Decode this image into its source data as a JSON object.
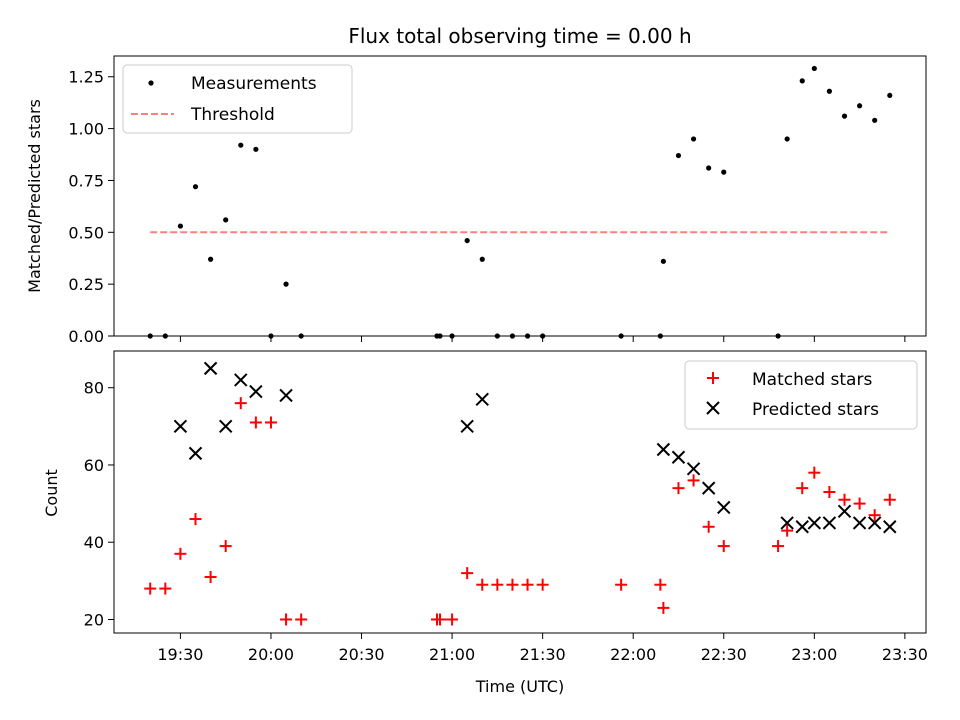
{
  "chart_data": [
    {
      "type": "scatter",
      "title": "Flux total observing time = 0.00 h",
      "xlabel": "",
      "ylabel": "Matched/Predicted stars",
      "xlim": [
        "19:08",
        "23:37"
      ],
      "ylim": [
        0.0,
        1.35
      ],
      "yticks": [
        0.0,
        0.25,
        0.5,
        0.75,
        1.0,
        1.25
      ],
      "ytick_labels": [
        "0.00",
        "0.25",
        "0.50",
        "0.75",
        "1.00",
        "1.25"
      ],
      "xticks": [
        "19:30",
        "20:00",
        "20:30",
        "21:00",
        "21:30",
        "22:00",
        "22:30",
        "23:00",
        "23:30"
      ],
      "xtick_labels_visible": false,
      "grid": false,
      "legend": "top-left",
      "series": [
        {
          "name": "Measurements",
          "marker": "dot",
          "color": "#000000",
          "x": [
            "19:20",
            "19:25",
            "19:30",
            "19:35",
            "19:40",
            "19:45",
            "19:50",
            "19:55",
            "20:00",
            "20:05",
            "20:10",
            "20:55",
            "20:56",
            "21:00",
            "21:05",
            "21:10",
            "21:15",
            "21:20",
            "21:25",
            "21:30",
            "21:56",
            "22:09",
            "22:10",
            "22:15",
            "22:20",
            "22:25",
            "22:30",
            "22:48",
            "22:51",
            "22:56",
            "23:00",
            "23:05",
            "23:10",
            "23:15",
            "23:20",
            "23:25"
          ],
          "y": [
            0.0,
            0.0,
            0.53,
            0.72,
            0.37,
            0.56,
            0.92,
            0.9,
            0.0,
            0.25,
            0.0,
            0.0,
            0.0,
            0.0,
            0.46,
            0.37,
            0.0,
            0.0,
            0.0,
            0.0,
            0.0,
            0.0,
            0.36,
            0.87,
            0.95,
            0.81,
            0.79,
            0.0,
            0.95,
            1.23,
            1.29,
            1.18,
            1.06,
            1.11,
            1.04,
            1.16
          ]
        },
        {
          "name": "Threshold",
          "marker": "dashed-line",
          "color": "#ff7f7f",
          "x": [
            "19:20",
            "23:25"
          ],
          "y": [
            0.5,
            0.5
          ]
        }
      ]
    },
    {
      "type": "scatter",
      "title": "",
      "xlabel": "Time (UTC)",
      "ylabel": "Count",
      "xlim": [
        "19:08",
        "23:37"
      ],
      "ylim": [
        16.5,
        89.5
      ],
      "yticks": [
        20,
        40,
        60,
        80
      ],
      "ytick_labels": [
        "20",
        "40",
        "60",
        "80"
      ],
      "xticks": [
        "19:30",
        "20:00",
        "20:30",
        "21:00",
        "21:30",
        "22:00",
        "22:30",
        "23:00",
        "23:30"
      ],
      "xtick_labels": [
        "19:30",
        "20:00",
        "20:30",
        "21:00",
        "21:30",
        "22:00",
        "22:30",
        "23:00",
        "23:30"
      ],
      "grid": false,
      "legend": "top-right",
      "series": [
        {
          "name": "Matched stars",
          "marker": "plus",
          "color": "#ff0000",
          "x": [
            "19:20",
            "19:25",
            "19:30",
            "19:35",
            "19:40",
            "19:45",
            "19:50",
            "19:55",
            "20:00",
            "20:05",
            "20:10",
            "20:55",
            "20:56",
            "21:00",
            "21:05",
            "21:10",
            "21:15",
            "21:20",
            "21:25",
            "21:30",
            "21:56",
            "22:09",
            "22:10",
            "22:15",
            "22:20",
            "22:25",
            "22:30",
            "22:48",
            "22:51",
            "22:56",
            "23:00",
            "23:05",
            "23:10",
            "23:15",
            "23:20",
            "23:25"
          ],
          "y": [
            28,
            28,
            37,
            46,
            31,
            39,
            76,
            71,
            71,
            20,
            20,
            20,
            20,
            20,
            32,
            29,
            29,
            29,
            29,
            29,
            29,
            29,
            23,
            54,
            56,
            44,
            39,
            39,
            43,
            54,
            58,
            53,
            51,
            50,
            47,
            51
          ]
        },
        {
          "name": "Predicted stars",
          "marker": "x",
          "color": "#000000",
          "x": [
            "19:30",
            "19:35",
            "19:40",
            "19:45",
            "19:50",
            "19:55",
            "20:05",
            "21:05",
            "21:10",
            "22:10",
            "22:15",
            "22:20",
            "22:25",
            "22:30",
            "22:51",
            "22:56",
            "23:00",
            "23:05",
            "23:10",
            "23:15",
            "23:20",
            "23:25"
          ],
          "y": [
            70,
            63,
            85,
            70,
            82,
            79,
            78,
            70,
            77,
            64,
            62,
            59,
            54,
            49,
            45,
            44,
            45,
            45,
            48,
            45,
            45,
            44
          ]
        }
      ]
    }
  ]
}
